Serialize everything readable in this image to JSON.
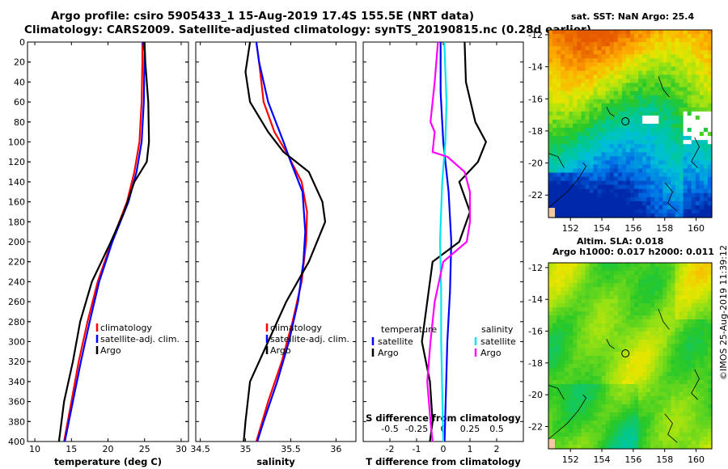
{
  "title_line1": "Argo profile: csiro 5905433_1 15-Aug-2019 17.4S 155.5E (NRT data)",
  "title_line2": "Climatology: CARS2009. Satellite-adjusted climatology: synTS_20190815.nc (0.28d earlier)",
  "sst_title": "sat. SST: NaN Argo: 25.4",
  "sla_title1": "Altim. SLA: 0.018",
  "sla_title2": "Argo h1000: 0.017 h2000: 0.011",
  "credit": "©IMOS 25-Aug-2019 11:39:12",
  "colors": {
    "climatology": "#ff0000",
    "satellite": "#0000ff",
    "argo": "#000000",
    "s_diff": "#ff00ff",
    "t_sat": "#00e5ee"
  },
  "chart_data": [
    {
      "type": "line",
      "name": "temperature",
      "xlabel": "temperature (deg C)",
      "ylabel": "depth",
      "xlim": [
        9,
        31
      ],
      "ylim": [
        400,
        0
      ],
      "xticks": [
        10,
        15,
        20,
        25,
        30
      ],
      "yticks": [
        0,
        20,
        40,
        60,
        80,
        100,
        120,
        140,
        160,
        180,
        200,
        220,
        240,
        260,
        280,
        300,
        320,
        340,
        360,
        380,
        400
      ],
      "legend": [
        "climatology",
        "satellite-adj. clim.",
        "Argo"
      ],
      "series": [
        {
          "name": "climatology",
          "color": "red",
          "depth": [
            0,
            20,
            60,
            100,
            130,
            160,
            200,
            240,
            280,
            320,
            360,
            400
          ],
          "values": [
            24.7,
            24.7,
            24.6,
            24.3,
            23.6,
            22.6,
            20.5,
            18.6,
            17.2,
            16.0,
            15.0,
            14.0
          ]
        },
        {
          "name": "satellite-adj. clim.",
          "color": "blue",
          "depth": [
            0,
            10,
            60,
            100,
            130,
            160,
            200,
            240,
            280,
            320,
            360,
            400
          ],
          "values": [
            24.8,
            25.0,
            24.9,
            24.6,
            23.9,
            22.8,
            20.6,
            18.8,
            17.5,
            16.3,
            15.2,
            14.1
          ]
        },
        {
          "name": "Argo",
          "color": "black",
          "depth": [
            0,
            20,
            60,
            100,
            120,
            140,
            170,
            200,
            240,
            280,
            320,
            360,
            400
          ],
          "values": [
            25.0,
            25.1,
            25.5,
            25.6,
            25.3,
            23.6,
            22.2,
            20.4,
            17.8,
            16.2,
            15.2,
            14.0,
            13.3
          ]
        }
      ]
    },
    {
      "type": "line",
      "name": "salinity",
      "xlabel": "salinity",
      "xlim": [
        34.45,
        36.22
      ],
      "ylim": [
        400,
        0
      ],
      "xticks": [
        34.5,
        35,
        35.5,
        36
      ],
      "xtick_labels": [
        "34.5",
        "35",
        "35.5",
        "36"
      ],
      "legend": [
        "climatology",
        "satellite-adj. clim.",
        "Argo"
      ],
      "series": [
        {
          "name": "climatology",
          "color": "red",
          "depth": [
            0,
            20,
            60,
            90,
            110,
            140,
            170,
            200,
            240,
            280,
            320,
            360,
            400
          ],
          "values": [
            35.12,
            35.15,
            35.2,
            35.32,
            35.45,
            35.62,
            35.68,
            35.67,
            35.62,
            35.52,
            35.4,
            35.25,
            35.12
          ]
        },
        {
          "name": "satellite-adj. clim.",
          "color": "blue",
          "depth": [
            0,
            20,
            60,
            100,
            120,
            150,
            190,
            220,
            260,
            300,
            340,
            380,
            400
          ],
          "values": [
            35.12,
            35.15,
            35.25,
            35.42,
            35.5,
            35.63,
            35.66,
            35.64,
            35.58,
            35.48,
            35.35,
            35.2,
            35.13
          ]
        },
        {
          "name": "Argo",
          "color": "black",
          "depth": [
            0,
            30,
            60,
            90,
            110,
            130,
            160,
            180,
            220,
            260,
            300,
            340,
            380,
            400
          ],
          "values": [
            35.05,
            35.0,
            35.05,
            35.25,
            35.42,
            35.7,
            35.85,
            35.88,
            35.7,
            35.45,
            35.25,
            35.05,
            35.0,
            34.98
          ]
        }
      ]
    },
    {
      "type": "line",
      "name": "difference from climatology",
      "xlabel": "T difference from climatology",
      "x2label": "S difference from climatology",
      "xlim": [
        -3,
        3
      ],
      "x2lim": [
        -0.75,
        0.75
      ],
      "ylim": [
        400,
        0
      ],
      "xticks": [
        -2,
        -1,
        0,
        1,
        2
      ],
      "x2ticks": [
        -0.5,
        -0.25,
        0,
        0.25,
        0.5
      ],
      "x2tick_labels": [
        "-0.5",
        "-0.25",
        "0",
        "0.25",
        "0.5"
      ],
      "legend": [
        "temperature",
        "satellite",
        "Argo",
        "salinity",
        "satellite",
        "Argo"
      ],
      "series": [
        {
          "name": "T satellite",
          "color": "blue",
          "depth": [
            0,
            50,
            100,
            150,
            200,
            250,
            300,
            350,
            400
          ],
          "values": [
            -0.1,
            -0.1,
            0.0,
            0.2,
            0.3,
            0.25,
            0.15,
            0.1,
            0.05
          ]
        },
        {
          "name": "T Argo",
          "color": "black",
          "depth": [
            0,
            40,
            80,
            100,
            120,
            140,
            170,
            200,
            220,
            260,
            300,
            340,
            380,
            400
          ],
          "values": [
            0.8,
            0.85,
            1.2,
            1.6,
            1.3,
            0.6,
            1.0,
            0.6,
            -0.4,
            -0.6,
            -0.8,
            -0.5,
            -0.4,
            -0.5
          ]
        },
        {
          "name": "S satellite",
          "color": "cyan",
          "depth": [
            0,
            60,
            100,
            140,
            200,
            250,
            300,
            350,
            400
          ],
          "values": [
            0.01,
            0.03,
            0.02,
            -0.01,
            -0.03,
            -0.02,
            -0.02,
            -0.01,
            0.0
          ]
        },
        {
          "name": "S Argo",
          "color": "magenta",
          "depth": [
            0,
            40,
            80,
            90,
            110,
            115,
            130,
            150,
            180,
            200,
            220,
            260,
            300,
            340,
            380,
            400
          ],
          "values": [
            -0.05,
            -0.08,
            -0.12,
            -0.08,
            -0.1,
            0.04,
            0.2,
            0.25,
            0.25,
            0.22,
            0.0,
            -0.08,
            -0.12,
            -0.15,
            -0.12,
            -0.1
          ]
        }
      ]
    },
    {
      "type": "heatmap",
      "name": "sat. SST",
      "xlim": [
        150.6,
        161.0
      ],
      "ylim": [
        -23.4,
        -11.7
      ],
      "xticks": [
        152,
        154,
        156,
        158,
        160
      ],
      "yticks": [
        -12,
        -14,
        -16,
        -18,
        -20,
        -22
      ],
      "argo_position": [
        155.5,
        -17.4
      ]
    },
    {
      "type": "heatmap",
      "name": "Altim. SLA",
      "xlim": [
        150.6,
        161.0
      ],
      "ylim": [
        -23.4,
        -11.7
      ],
      "xticks": [
        152,
        154,
        156,
        158,
        160
      ],
      "yticks": [
        -12,
        -14,
        -16,
        -18,
        -20,
        -22
      ],
      "argo_position": [
        155.5,
        -17.4
      ]
    }
  ]
}
